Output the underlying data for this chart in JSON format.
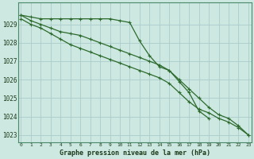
{
  "title": "Graphe pression niveau de la mer (hPa)",
  "bg_color": "#cce8e0",
  "grid_color": "#aacccc",
  "line_color": "#2d6a2d",
  "x_values": [
    0,
    1,
    2,
    3,
    4,
    5,
    6,
    7,
    8,
    9,
    10,
    11,
    12,
    13,
    14,
    15,
    16,
    17,
    18,
    19,
    20,
    21,
    22,
    23
  ],
  "line1": [
    1029.5,
    1029.4,
    1029.3,
    1029.3,
    1029.3,
    1029.3,
    1029.3,
    1029.3,
    1029.3,
    1029.3,
    1029.2,
    1029.1,
    1028.1,
    1027.3,
    1026.7,
    1026.5,
    1025.9,
    1025.3,
    1024.3,
    1023.9,
    null,
    null,
    null,
    null
  ],
  "line2": [
    1029.5,
    1029.2,
    1029.0,
    1028.8,
    1028.6,
    1028.5,
    1028.4,
    1028.2,
    1028.0,
    1027.8,
    1027.6,
    1027.4,
    1027.2,
    1027.0,
    1026.8,
    1026.5,
    1026.0,
    1025.5,
    1025.0,
    1024.5,
    1024.1,
    1023.9,
    1023.5,
    1023.0
  ],
  "line3": [
    1029.3,
    1029.0,
    1028.8,
    1028.5,
    1028.2,
    1027.9,
    1027.7,
    1027.5,
    1027.3,
    1027.1,
    1026.9,
    1026.7,
    1026.5,
    1026.3,
    1026.1,
    1025.8,
    1025.3,
    1024.8,
    1024.4,
    1024.2,
    1023.9,
    1023.7,
    1023.4,
    1023.0
  ],
  "ylim": [
    1022.6,
    1030.2
  ],
  "yticks": [
    1023,
    1024,
    1025,
    1026,
    1027,
    1028,
    1029
  ],
  "marker": "+",
  "marker_size": 3,
  "linewidth": 0.9
}
